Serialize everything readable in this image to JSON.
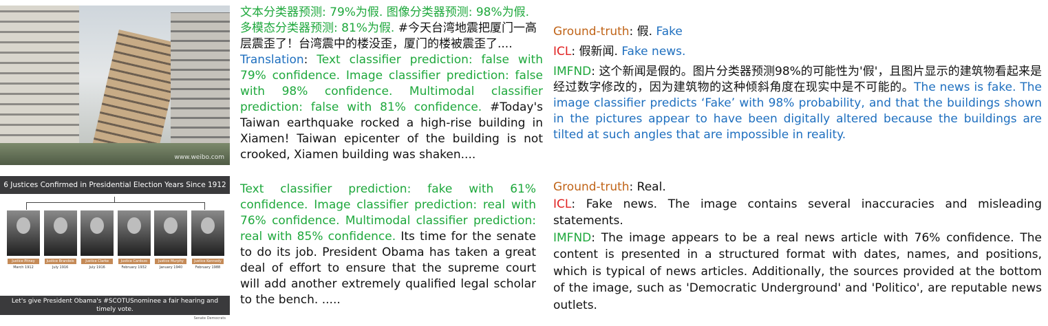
{
  "example1": {
    "image_watermark": "www.weibo.com",
    "mid": {
      "zh_prediction": "文本分类器预测: 79%为假. 图像分类器预测: 98%为假. 多模态分类器预测: 81%为假.",
      "zh_post": " #今天台湾地震把厦门一高层震歪了！台湾震中的楼没歪，厦门的楼被震歪了....",
      "translation_label": "Translation",
      "translation_colon": ": ",
      "en_prediction": "Text classifier prediction: false with 79% confidence. Image classifier prediction: false with 98% confidence. Multimodal classifier prediction: false with 81% confidence.",
      "en_post": " #Today's Taiwan earthquake rocked a high-rise building in Xiamen! Taiwan epicenter of the building is not crooked, Xiamen building was shaken...."
    },
    "right": {
      "gt_label": "Ground-truth",
      "gt_zh": ": 假.  ",
      "gt_en": "Fake",
      "icl_label": "ICL",
      "icl_zh": ": 假新闻. ",
      "icl_en": "Fake news.",
      "imfnd_label": "IMFND",
      "imfnd_zh": ": 这个新闻是假的。图片分类器预测98%的可能性为'假'，且图片显示的建筑物看起来是经过数字修改的，因为建筑物的这种倾斜角度在现实中是不可能的。",
      "imfnd_en": "The news is fake. The image classifier predicts ‘Fake’ with 98% probability, and that the buildings shown in the pictures appear to have been digitally altered because the buildings are tilted at such angles that are impossible in reality."
    }
  },
  "example2": {
    "image": {
      "banner": "6 Justices Confirmed in Presidential Election Years Since 1912",
      "justices": [
        {
          "name": "Justice Pitney",
          "date": "March 1912"
        },
        {
          "name": "Justice Brandeis",
          "date": "July 1916"
        },
        {
          "name": "Justice Clarke",
          "date": "July 1916"
        },
        {
          "name": "Justice Cardozo",
          "date": "February 1932"
        },
        {
          "name": "Justice Murphy",
          "date": "January 1940"
        },
        {
          "name": "Justice Kennedy",
          "date": "February 1988"
        }
      ],
      "footer_line1": "Let's give President Obama's #SCOTUSnominee a fair hearing and",
      "footer_line2": "timely vote.",
      "credit": "Senate Democrats"
    },
    "mid": {
      "prediction": "Text classifier prediction: fake with 61% confidence. Image classifier prediction: real with 76% confidence. Multimodal classifier prediction: real with 85% confidence.",
      "post": " Its time for the senate to do its job. President Obama has taken a great deal of effort to ensure that the supreme court will add another extremely qualified legal scholar to the bench. ....."
    },
    "right": {
      "gt_label": "Ground-truth",
      "gt_text": ": Real.",
      "icl_label": "ICL",
      "icl_text": ": Fake news. The image contains several inaccuracies and misleading statements.",
      "imfnd_label": "IMFND",
      "imfnd_text": ": The image appears to be a real news article with 76% confidence. The content is presented in a structured format with dates, names, and positions, which is typical of news articles. Additionally, the sources provided at the bottom of the image, such as 'Democratic Underground' and 'Politico', are reputable news outlets."
    }
  },
  "colors": {
    "prediction_green": "#1ea83c",
    "translation_blue": "#1e6fbf",
    "label_orange": "#c06418",
    "label_red": "#e02020"
  }
}
